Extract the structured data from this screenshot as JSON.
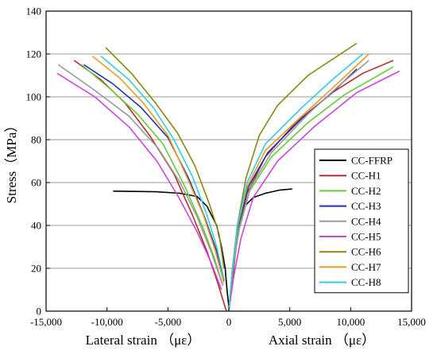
{
  "chart_data": {
    "type": "line",
    "title": "",
    "xlabel_left": "Lateral strain （με）",
    "xlabel_right": "Axial strain （με）",
    "ylabel": "Stress（MPa）",
    "xlim": [
      -15000,
      15000
    ],
    "ylim": [
      0,
      140
    ],
    "xticks": [
      -15000,
      -10000,
      -5000,
      0,
      5000,
      10000,
      15000
    ],
    "xtick_labels": [
      "-15,000",
      "-10,000",
      "-5,000",
      "0",
      "5,000",
      "10,000",
      "15,000"
    ],
    "yticks": [
      0,
      20,
      40,
      60,
      80,
      100,
      120,
      140
    ],
    "ytick_labels": [
      "0",
      "20",
      "40",
      "60",
      "80",
      "100",
      "120",
      "140"
    ],
    "grid": {
      "horizontal": true,
      "vertical": false
    },
    "legend_position": "right",
    "series": [
      {
        "name": "CC-FFRP",
        "color": "#000000",
        "points": [
          [
            0,
            2
          ],
          [
            -150,
            10
          ],
          [
            -300,
            20
          ],
          [
            -600,
            30
          ],
          [
            -1000,
            40
          ],
          [
            -1800,
            49
          ],
          [
            -2600,
            53.5
          ],
          [
            -4000,
            55
          ],
          [
            -6000,
            55.7
          ],
          [
            -9500,
            56
          ],
          [
            0,
            2
          ],
          [
            200,
            10
          ],
          [
            400,
            20
          ],
          [
            600,
            30
          ],
          [
            900,
            40
          ],
          [
            1300,
            49
          ],
          [
            2000,
            53
          ],
          [
            3000,
            55
          ],
          [
            4200,
            56.5
          ],
          [
            5200,
            57
          ]
        ]
      },
      {
        "name": "CC-H1",
        "color": "#b03030",
        "points": [
          [
            -12700,
            117
          ],
          [
            -10500,
            108
          ],
          [
            -8500,
            97
          ],
          [
            -6500,
            82
          ],
          [
            -4500,
            64
          ],
          [
            -3000,
            45
          ],
          [
            -1800,
            28
          ],
          [
            -900,
            13
          ],
          [
            -200,
            0
          ],
          [
            0,
            0
          ],
          [
            300,
            15
          ],
          [
            700,
            35
          ],
          [
            1500,
            55
          ],
          [
            3000,
            72
          ],
          [
            5500,
            88
          ],
          [
            8500,
            102
          ],
          [
            11000,
            111
          ],
          [
            13500,
            117
          ]
        ]
      },
      {
        "name": "CC-H2",
        "color": "#66cc33",
        "points": [
          [
            -12100,
            115
          ],
          [
            -9800,
            104
          ],
          [
            -7500,
            92
          ],
          [
            -5400,
            78
          ],
          [
            -3600,
            58
          ],
          [
            -2200,
            40
          ],
          [
            -1200,
            25
          ],
          [
            -500,
            12
          ],
          [
            0,
            0
          ],
          [
            0,
            0
          ],
          [
            300,
            18
          ],
          [
            800,
            37
          ],
          [
            1700,
            56
          ],
          [
            3500,
            72
          ],
          [
            6500,
            88
          ],
          [
            9500,
            101
          ],
          [
            13500,
            114
          ]
        ]
      },
      {
        "name": "CC-H3",
        "color": "#2233aa",
        "points": [
          [
            -11900,
            115
          ],
          [
            -9500,
            106
          ],
          [
            -7200,
            95
          ],
          [
            -5000,
            81
          ],
          [
            -3300,
            62
          ],
          [
            -2000,
            44
          ],
          [
            -1000,
            28
          ],
          [
            -400,
            14
          ],
          [
            0,
            0
          ],
          [
            0,
            0
          ],
          [
            300,
            20
          ],
          [
            800,
            40
          ],
          [
            1600,
            58
          ],
          [
            3200,
            74
          ],
          [
            6000,
            90
          ],
          [
            8500,
            102
          ],
          [
            10500,
            113
          ]
        ]
      },
      {
        "name": "CC-H4",
        "color": "#999999",
        "points": [
          [
            -14000,
            115
          ],
          [
            -11000,
            103
          ],
          [
            -8200,
            91
          ],
          [
            -5800,
            76
          ],
          [
            -4000,
            60
          ],
          [
            -2600,
            44
          ],
          [
            -1400,
            27
          ],
          [
            -500,
            12
          ],
          [
            0,
            0
          ],
          [
            0,
            0
          ],
          [
            300,
            18
          ],
          [
            800,
            38
          ],
          [
            1800,
            58
          ],
          [
            3500,
            74
          ],
          [
            6500,
            92
          ],
          [
            9000,
            105
          ],
          [
            11500,
            117
          ]
        ]
      },
      {
        "name": "CC-H5",
        "color": "#cc44dd",
        "points": [
          [
            -14100,
            111
          ],
          [
            -11000,
            100
          ],
          [
            -8200,
            86
          ],
          [
            -5900,
            70
          ],
          [
            -4100,
            53
          ],
          [
            -2600,
            37
          ],
          [
            -1400,
            22
          ],
          [
            -600,
            10
          ],
          [
            0,
            0
          ],
          [
            0,
            0
          ],
          [
            400,
            16
          ],
          [
            1000,
            34
          ],
          [
            2000,
            53
          ],
          [
            4000,
            70
          ],
          [
            7000,
            86
          ],
          [
            10500,
            102
          ],
          [
            14000,
            112
          ]
        ]
      },
      {
        "name": "CC-H6",
        "color": "#888811",
        "points": [
          [
            -10100,
            123
          ],
          [
            -8000,
            111
          ],
          [
            -6000,
            97
          ],
          [
            -4200,
            83
          ],
          [
            -2800,
            68
          ],
          [
            -1600,
            50
          ],
          [
            -800,
            36
          ],
          [
            -400,
            20
          ],
          [
            0,
            0
          ],
          [
            0,
            0
          ],
          [
            300,
            20
          ],
          [
            700,
            40
          ],
          [
            1400,
            62
          ],
          [
            2500,
            82
          ],
          [
            4000,
            96
          ],
          [
            6500,
            110
          ],
          [
            10500,
            125
          ]
        ]
      },
      {
        "name": "CC-H7",
        "color": "#ee9922",
        "points": [
          [
            -11200,
            119
          ],
          [
            -9000,
            109
          ],
          [
            -7000,
            97
          ],
          [
            -5000,
            82
          ],
          [
            -3400,
            62
          ],
          [
            -2100,
            45
          ],
          [
            -1100,
            28
          ],
          [
            -400,
            13
          ],
          [
            0,
            0
          ],
          [
            0,
            0
          ],
          [
            300,
            20
          ],
          [
            700,
            39
          ],
          [
            1500,
            58
          ],
          [
            3000,
            75
          ],
          [
            5800,
            90
          ],
          [
            8500,
            104
          ],
          [
            11500,
            120
          ]
        ]
      },
      {
        "name": "CC-H8",
        "color": "#33ccdd",
        "points": [
          [
            -10500,
            119
          ],
          [
            -8200,
            108
          ],
          [
            -6200,
            95
          ],
          [
            -4500,
            80
          ],
          [
            -3000,
            63
          ],
          [
            -1800,
            45
          ],
          [
            -1000,
            30
          ],
          [
            -400,
            15
          ],
          [
            0,
            0
          ],
          [
            0,
            0
          ],
          [
            300,
            20
          ],
          [
            700,
            40
          ],
          [
            1500,
            60
          ],
          [
            3000,
            78
          ],
          [
            6000,
            95
          ],
          [
            8500,
            108
          ],
          [
            11000,
            120
          ]
        ]
      }
    ]
  }
}
